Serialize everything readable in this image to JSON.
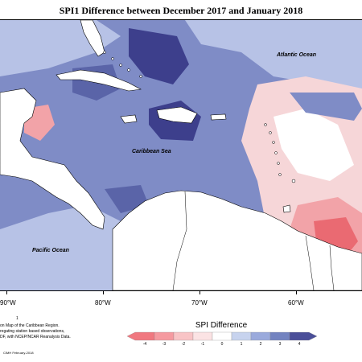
{
  "title": "SPI1 Difference between December 2017 and January 2018",
  "ocean_labels": {
    "atlantic": "Atlantic Ocean",
    "caribbean": "Caribbean Sea",
    "pacific": "Pacific Ocean"
  },
  "longitude_labels": [
    "90°W",
    "80°W",
    "70°W",
    "60°W"
  ],
  "legend": {
    "title": "SPI Difference",
    "ticks": [
      "-4",
      "-3",
      "-2",
      "-1",
      "0",
      "1",
      "2",
      "3",
      "4"
    ],
    "colors": [
      "#f07880",
      "#f59aa0",
      "#f8c4c6",
      "#fbe3e4",
      "#ffffff",
      "#c7d3ee",
      "#9aaadc",
      "#7383c0",
      "#4b4f99"
    ]
  },
  "notes": [
    "on Map of the Caribbean Region.",
    "regating station based observations,",
    "DF, with NCEP/NCAR Reanalysis Data."
  ],
  "small_mark": "1",
  "credit": "CIMH February-2018",
  "colors": {
    "strong_wet": "#3d3f8c",
    "wet": "#5a64a8",
    "moderate_wet": "#7f8cc6",
    "light_wet": "#b7c2e6",
    "light_dry": "#f6d6d8",
    "dry": "#f2a3a8",
    "strong_dry": "#ea6a72",
    "land": "#ffffff"
  }
}
